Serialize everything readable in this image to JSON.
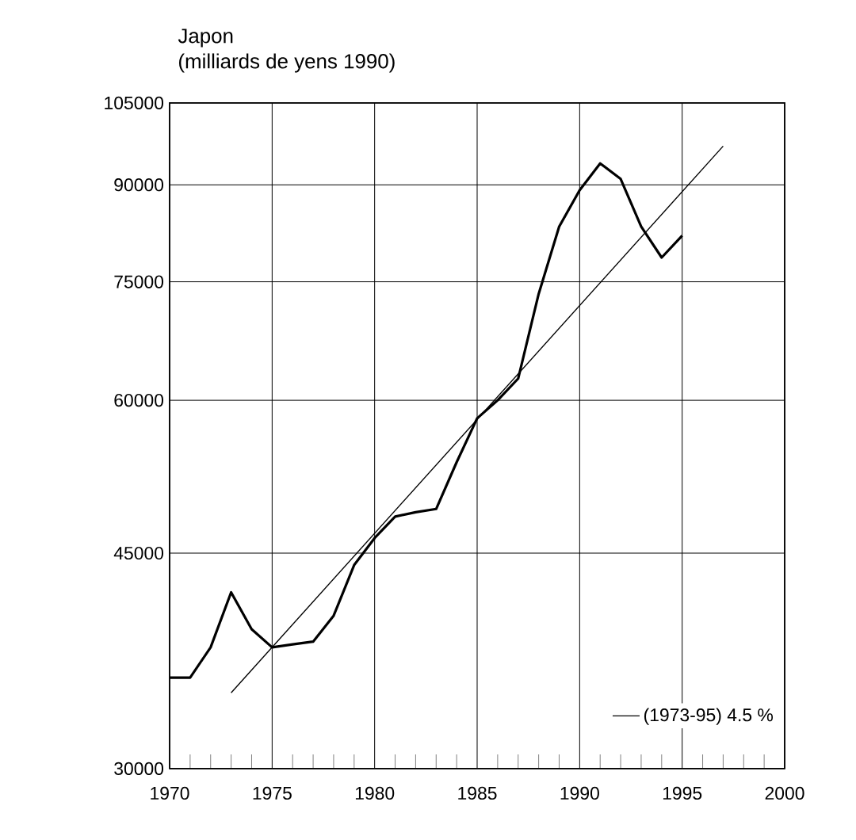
{
  "chart_data": {
    "type": "line",
    "title": "Japon",
    "ylabel": "(milliards de yens 1990)",
    "log": "y",
    "grid": true,
    "legend": "bottom right",
    "xlim": [
      1970,
      2000
    ],
    "xticks": [
      1970,
      1975,
      1980,
      1985,
      1990,
      1995,
      2000
    ],
    "ylim": [
      30000,
      105000
    ],
    "yticks": [
      30000,
      45000,
      60000,
      75000,
      90000,
      105000
    ],
    "series": [
      {
        "color": "#000000",
        "x": [
          1970,
          1971,
          1972,
          1973,
          1974,
          1975,
          1976,
          1977,
          1978,
          1979,
          1980,
          1981,
          1982,
          1983,
          1984,
          1985,
          1986,
          1987,
          1988,
          1989,
          1990,
          1991,
          1992,
          1993,
          1994,
          1995
        ],
        "values": [
          35600,
          35600,
          37700,
          41800,
          39000,
          37700,
          37900,
          38100,
          40000,
          44000,
          46300,
          48200,
          48600,
          48900,
          53400,
          58000,
          60000,
          62500,
          73300,
          83200,
          89100,
          93700,
          91000,
          83200,
          78500,
          81800
        ]
      },
      {
        "name": "(1973-95) 4.5 %",
        "color": "#000000",
        "x": [
          1973,
          1997
        ],
        "values": [
          34600,
          96800
        ]
      }
    ]
  }
}
